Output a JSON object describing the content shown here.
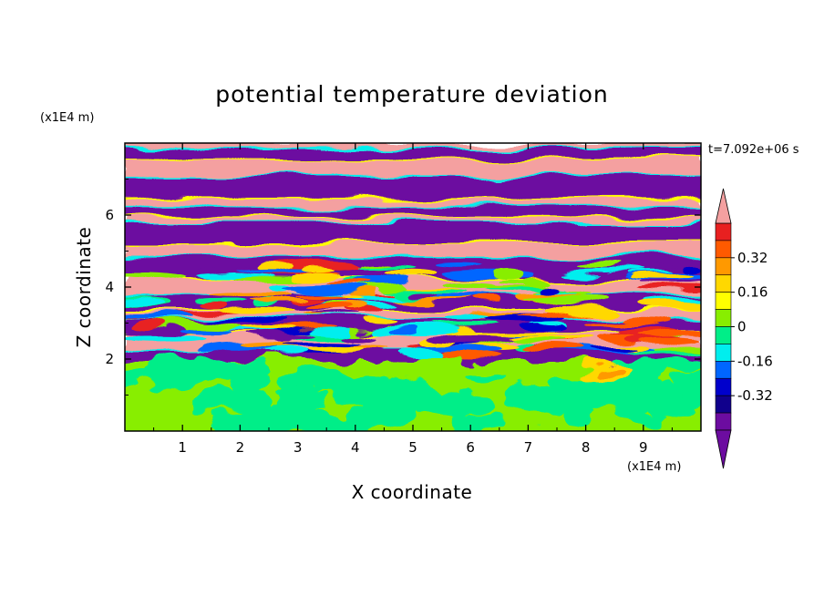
{
  "chart_data": {
    "type": "heatmap",
    "title": "potential temperature deviation",
    "xlabel": "X coordinate",
    "ylabel": "Z coordinate",
    "x_unit": "(x1E4 m)",
    "z_unit": "(x1E4 m)",
    "time_label": "t=7.092e+06 s",
    "xlim": [
      0,
      10
    ],
    "ylim": [
      0,
      8
    ],
    "x_ticks": [
      "1",
      "2",
      "3",
      "4",
      "5",
      "6",
      "7",
      "8",
      "9"
    ],
    "y_ticks": [
      "2",
      "4",
      "6"
    ],
    "colorbar": {
      "levels": [
        0.48,
        0.4,
        0.32,
        0.24,
        0.16,
        0.08,
        0.0,
        -0.08,
        -0.16,
        -0.24,
        -0.32,
        -0.4,
        -0.48
      ],
      "colors": [
        "#f4a0a0",
        "#e82020",
        "#ff5a00",
        "#ff9900",
        "#ffd800",
        "#ffff00",
        "#88ee00",
        "#00ee88",
        "#00eeee",
        "#0066ff",
        "#0000cc",
        "#10008c",
        "#6c0ca0",
        "#6c0ca0"
      ],
      "labels": [
        "0.32",
        "0.16",
        "0",
        "-0.16",
        "-0.32"
      ],
      "label_values": [
        0.32,
        0.16,
        0.0,
        -0.16,
        -0.32
      ]
    },
    "layers": {
      "lower_mixed_top": 1.95,
      "stratified_top": 8,
      "band_thickness": 0.42
    }
  }
}
